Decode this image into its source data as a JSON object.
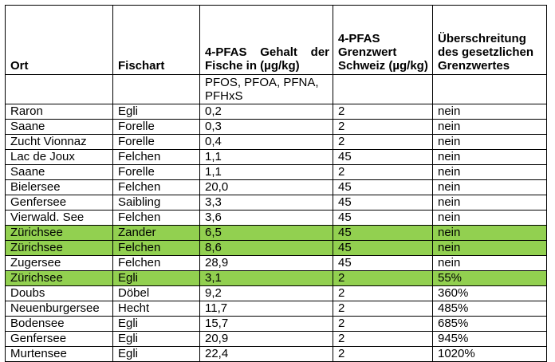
{
  "table": {
    "headers": [
      "Ort",
      "Fischart",
      "4-PFAS Gehalt der Fische in (µg/kg)",
      "4-PFAS Grenzwert Schweiz (µg/kg)",
      "Überschreitung des gesetzlichen Grenzwertes"
    ],
    "subheader": "PFOS, PFOA, PFNA, PFHxS",
    "highlight_color": "#92d050",
    "rows": [
      {
        "ort": "Raron",
        "fischart": "Egli",
        "gehalt": "0,2",
        "grenzwert": "2",
        "ueberschreitung": "nein",
        "highlighted": false
      },
      {
        "ort": "Saane",
        "fischart": "Forelle",
        "gehalt": "0,3",
        "grenzwert": "2",
        "ueberschreitung": "nein",
        "highlighted": false
      },
      {
        "ort": "Zucht Vionnaz",
        "fischart": "Forelle",
        "gehalt": "0,4",
        "grenzwert": "2",
        "ueberschreitung": "nein",
        "highlighted": false
      },
      {
        "ort": "Lac de Joux",
        "fischart": "Felchen",
        "gehalt": "1,1",
        "grenzwert": "45",
        "ueberschreitung": "nein",
        "highlighted": false
      },
      {
        "ort": "Saane",
        "fischart": "Forelle",
        "gehalt": "1,1",
        "grenzwert": "2",
        "ueberschreitung": "nein",
        "highlighted": false
      },
      {
        "ort": "Bielersee",
        "fischart": "Felchen",
        "gehalt": "20,0",
        "grenzwert": "45",
        "ueberschreitung": "nein",
        "highlighted": false
      },
      {
        "ort": "Genfersee",
        "fischart": "Saibling",
        "gehalt": "3,3",
        "grenzwert": "45",
        "ueberschreitung": "nein",
        "highlighted": false
      },
      {
        "ort": "Vierwald. See",
        "fischart": "Felchen",
        "gehalt": "3,6",
        "grenzwert": "45",
        "ueberschreitung": "nein",
        "highlighted": false
      },
      {
        "ort": "Zürichsee",
        "fischart": "Zander",
        "gehalt": "6,5",
        "grenzwert": "45",
        "ueberschreitung": "nein",
        "highlighted": true
      },
      {
        "ort": "Zürichsee",
        "fischart": "Felchen",
        "gehalt": "8,6",
        "grenzwert": "45",
        "ueberschreitung": "nein",
        "highlighted": true
      },
      {
        "ort": "Zugersee",
        "fischart": "Felchen",
        "gehalt": "28,9",
        "grenzwert": "45",
        "ueberschreitung": "nein",
        "highlighted": false
      },
      {
        "ort": "Zürichsee",
        "fischart": "Egli",
        "gehalt": "3,1",
        "grenzwert": "2",
        "ueberschreitung": "55%",
        "highlighted": true
      },
      {
        "ort": "Doubs",
        "fischart": "Döbel",
        "gehalt": "9,2",
        "grenzwert": "2",
        "ueberschreitung": "360%",
        "highlighted": false
      },
      {
        "ort": "Neuenburgersee",
        "fischart": "Hecht",
        "gehalt": "11,7",
        "grenzwert": "2",
        "ueberschreitung": "485%",
        "highlighted": false
      },
      {
        "ort": "Bodensee",
        "fischart": "Egli",
        "gehalt": "15,7",
        "grenzwert": "2",
        "ueberschreitung": "685%",
        "highlighted": false
      },
      {
        "ort": "Genfersee",
        "fischart": "Egli",
        "gehalt": "20,9",
        "grenzwert": "2",
        "ueberschreitung": "945%",
        "highlighted": false
      },
      {
        "ort": "Murtensee",
        "fischart": "Egli",
        "gehalt": "22,4",
        "grenzwert": "2",
        "ueberschreitung": "1020%",
        "highlighted": false
      }
    ]
  }
}
